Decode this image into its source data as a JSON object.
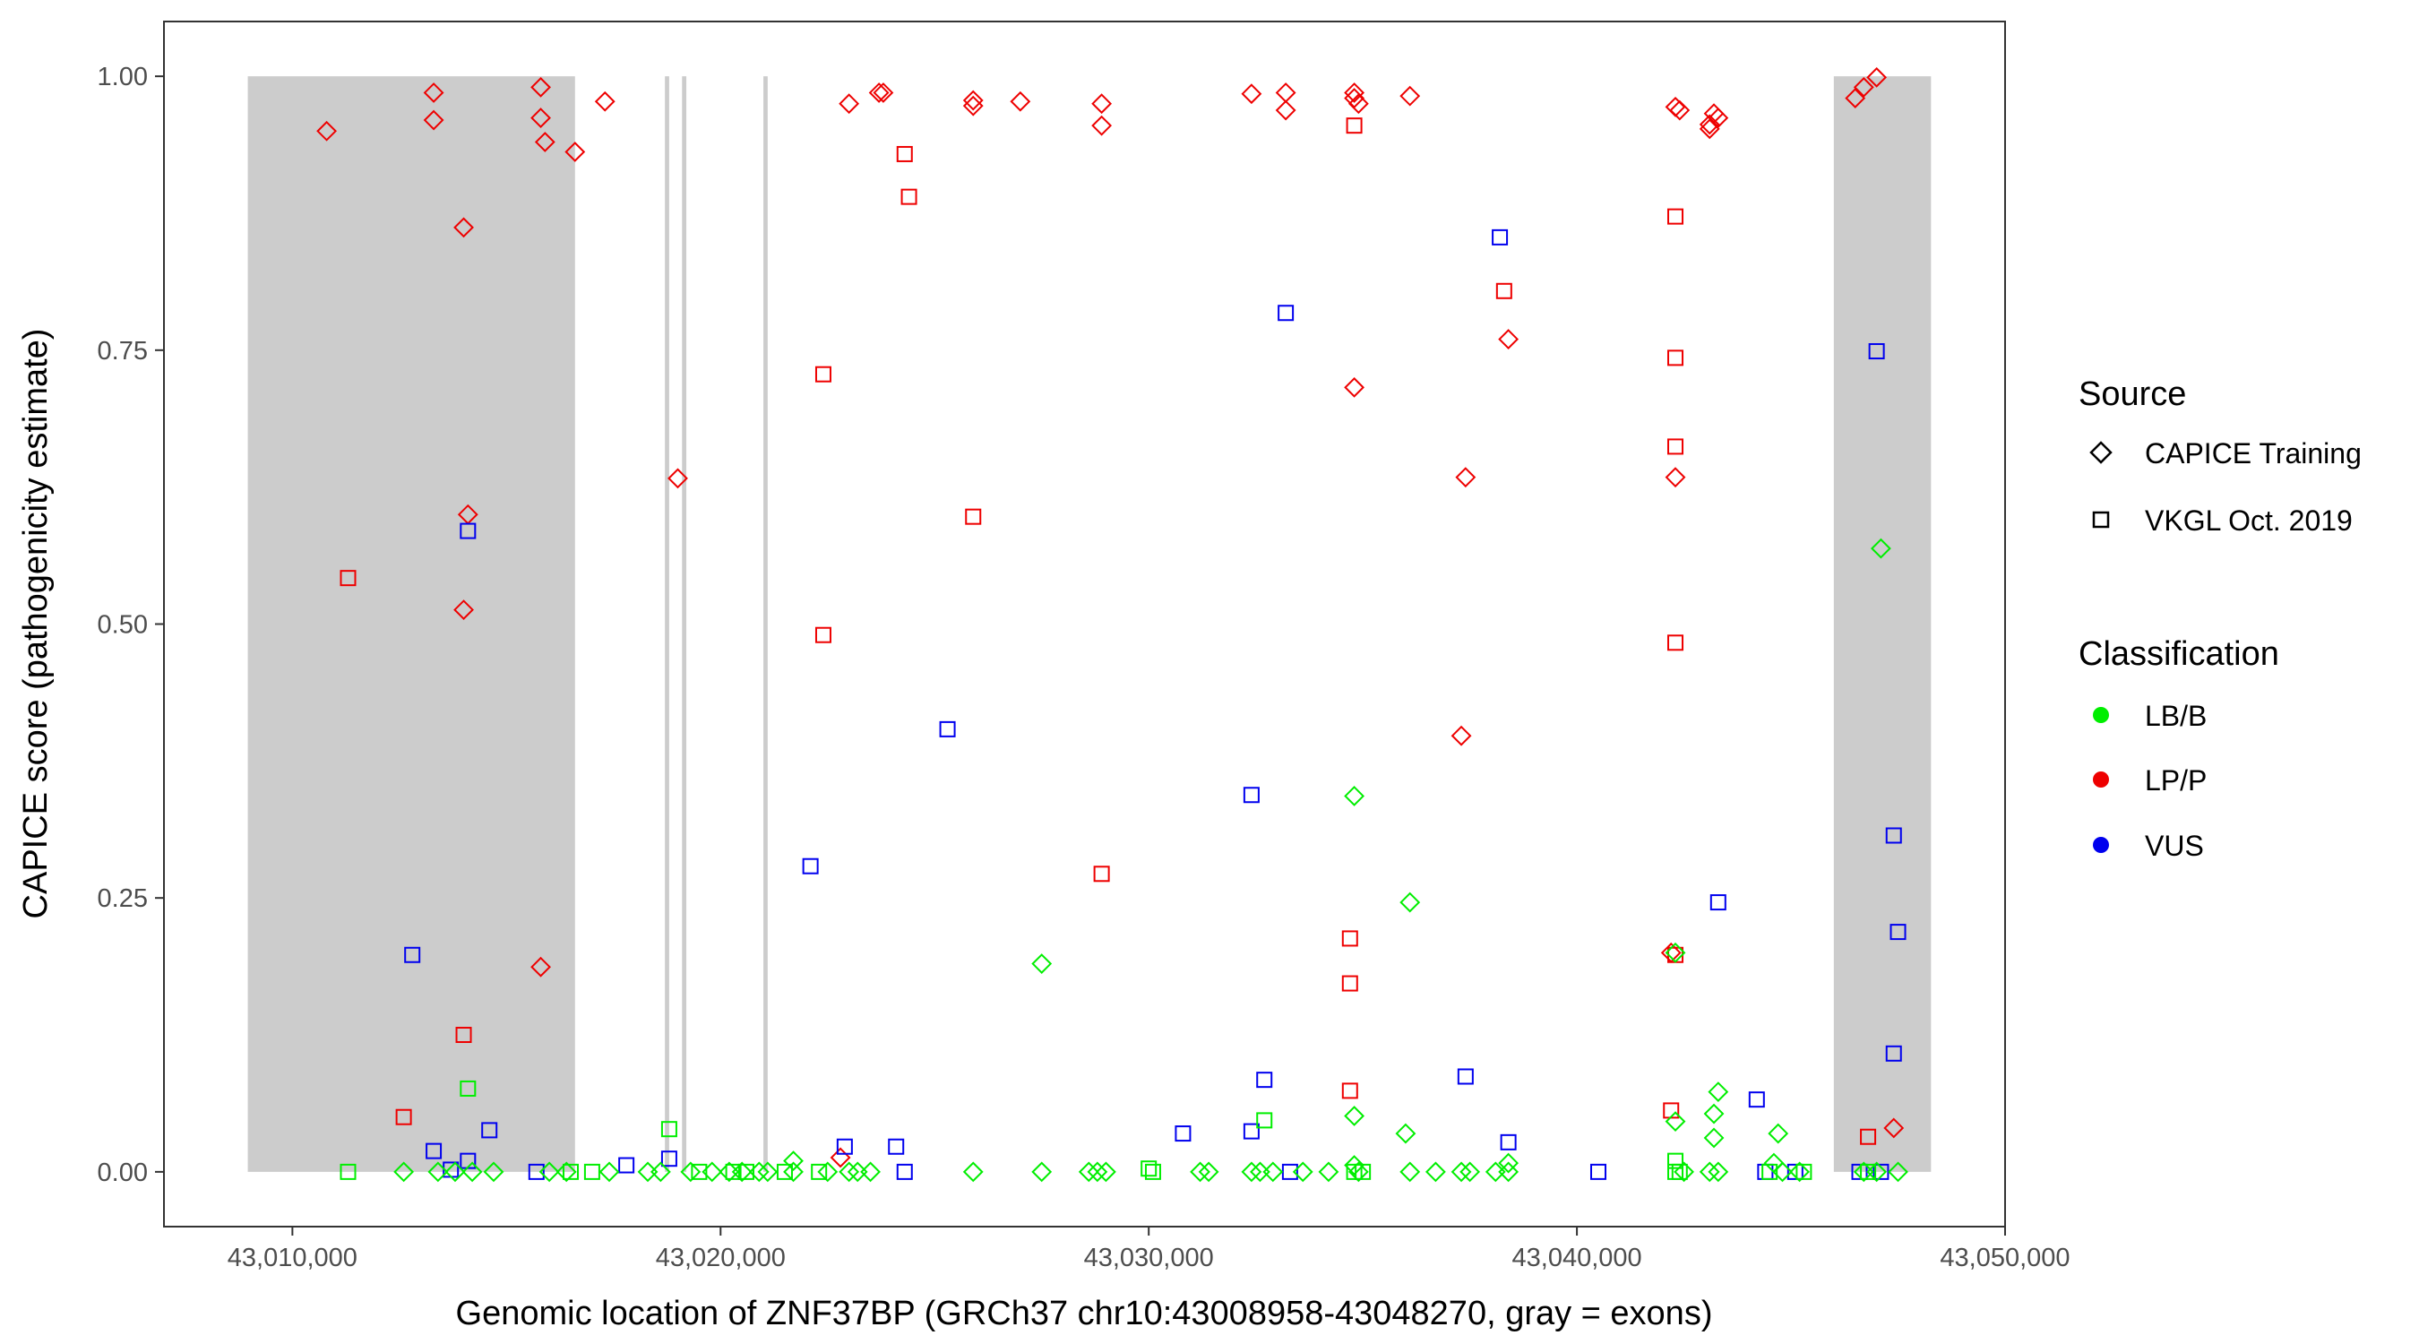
{
  "chart_data": {
    "type": "scatter",
    "xlabel": "Genomic location of ZNF37BP (GRCh37 chr10:43008958-43048270, gray = exons)",
    "ylabel": "CAPICE score (pathogenicity estimate)",
    "xlim": [
      43007000,
      43050000
    ],
    "ylim": [
      -0.05,
      1.05
    ],
    "x_ticks": [
      43010000,
      43020000,
      43030000,
      43040000,
      43050000
    ],
    "x_tick_labels": [
      "43,010,000",
      "43,020,000",
      "43,030,000",
      "43,040,000",
      "43,050,000"
    ],
    "y_ticks": [
      0,
      0.25,
      0.5,
      0.75,
      1.0
    ],
    "y_tick_labels": [
      "0.00",
      "0.25",
      "0.50",
      "0.75",
      "1.00"
    ],
    "grid": false,
    "exons": [
      {
        "start": 43008958,
        "end": 43016600
      },
      {
        "start": 43018700,
        "end": 43018800
      },
      {
        "start": 43019100,
        "end": 43019200
      },
      {
        "start": 43021000,
        "end": 43021100
      },
      {
        "start": 43046000,
        "end": 43048270
      }
    ],
    "exon_color": "#cccccc",
    "legend_placement": "right",
    "legends": {
      "source": {
        "title": "Source",
        "items": [
          {
            "label": "CAPICE Training",
            "shape": "diamond"
          },
          {
            "label": "VKGL Oct. 2019",
            "shape": "square"
          }
        ]
      },
      "classification": {
        "title": "Classification",
        "items": [
          {
            "label": "LB/B",
            "color": "#00ee00"
          },
          {
            "label": "LP/P",
            "color": "#ee0000"
          },
          {
            "label": "VUS",
            "color": "#0000ee"
          }
        ]
      }
    },
    "colors": {
      "LB/B": "#00ee00",
      "LP/P": "#ee0000",
      "VUS": "#0000ee"
    },
    "series": [
      {
        "source": "CAPICE Training",
        "class": "LP/P",
        "points": [
          [
            43010800,
            0.95
          ],
          [
            43013300,
            0.985
          ],
          [
            43013300,
            0.96
          ],
          [
            43014000,
            0.862
          ],
          [
            43014100,
            0.6
          ],
          [
            43014000,
            0.513
          ],
          [
            43015800,
            0.99
          ],
          [
            43015800,
            0.962
          ],
          [
            43015900,
            0.94
          ],
          [
            43015800,
            0.187
          ],
          [
            43016600,
            0.931
          ],
          [
            43017300,
            0.977
          ],
          [
            43019000,
            0.633
          ],
          [
            43023000,
            0.975
          ],
          [
            43023700,
            0.985
          ],
          [
            43023800,
            0.985
          ],
          [
            43025900,
            0.978
          ],
          [
            43025900,
            0.973
          ],
          [
            43027000,
            0.977
          ],
          [
            43028900,
            0.975
          ],
          [
            43028900,
            0.955
          ],
          [
            43032400,
            0.984
          ],
          [
            43033200,
            0.985
          ],
          [
            43033200,
            0.969
          ],
          [
            43034800,
            0.985
          ],
          [
            43034800,
            0.98
          ],
          [
            43034900,
            0.975
          ],
          [
            43034800,
            0.716
          ],
          [
            43036100,
            0.982
          ],
          [
            43037400,
            0.634
          ],
          [
            43037300,
            0.398
          ],
          [
            43038400,
            0.76
          ],
          [
            43042300,
            0.972
          ],
          [
            43042400,
            0.969
          ],
          [
            43042300,
            0.634
          ],
          [
            43043200,
            0.966
          ],
          [
            43043300,
            0.962
          ],
          [
            43043100,
            0.956
          ],
          [
            43043100,
            0.952
          ],
          [
            43046500,
            0.98
          ],
          [
            43046700,
            0.99
          ],
          [
            43047000,
            0.999
          ],
          [
            43047400,
            0.04
          ],
          [
            43022800,
            0.013
          ],
          [
            43042200,
            0.2
          ]
        ]
      },
      {
        "source": "VKGL Oct. 2019",
        "class": "LP/P",
        "points": [
          [
            43011300,
            0.542
          ],
          [
            43012600,
            0.05
          ],
          [
            43014000,
            0.125
          ],
          [
            43022400,
            0.728
          ],
          [
            43022400,
            0.49
          ],
          [
            43024300,
            0.929
          ],
          [
            43024400,
            0.89
          ],
          [
            43025900,
            0.598
          ],
          [
            43028900,
            0.272
          ],
          [
            43034800,
            0.955
          ],
          [
            43034700,
            0.213
          ],
          [
            43034700,
            0.172
          ],
          [
            43034700,
            0.074
          ],
          [
            43038300,
            0.804
          ],
          [
            43042300,
            0.872
          ],
          [
            43042300,
            0.743
          ],
          [
            43042300,
            0.662
          ],
          [
            43042300,
            0.483
          ],
          [
            43042300,
            0.198
          ],
          [
            43042200,
            0.056
          ],
          [
            43046800,
            0.032
          ]
        ]
      },
      {
        "source": "VKGL Oct. 2019",
        "class": "VUS",
        "points": [
          [
            43012800,
            0.198
          ],
          [
            43013300,
            0.019
          ],
          [
            43013700,
            0.002
          ],
          [
            43014100,
            0.585
          ],
          [
            43014100,
            0.01
          ],
          [
            43014600,
            0.038
          ],
          [
            43015700,
            0.0
          ],
          [
            43017800,
            0.006
          ],
          [
            43018800,
            0.012
          ],
          [
            43022100,
            0.279
          ],
          [
            43022900,
            0.023
          ],
          [
            43024100,
            0.023
          ],
          [
            43024300,
            0.0
          ],
          [
            43025300,
            0.404
          ],
          [
            43030800,
            0.035
          ],
          [
            43032400,
            0.344
          ],
          [
            43032400,
            0.037
          ],
          [
            43032700,
            0.084
          ],
          [
            43033200,
            0.784
          ],
          [
            43033300,
            0.0
          ],
          [
            43037400,
            0.087
          ],
          [
            43038200,
            0.853
          ],
          [
            43038400,
            0.027
          ],
          [
            43040500,
            0.0
          ],
          [
            43043300,
            0.246
          ],
          [
            43044200,
            0.066
          ],
          [
            43044400,
            0.0
          ],
          [
            43045100,
            0.0
          ],
          [
            43046600,
            0.0
          ],
          [
            43047000,
            0.749
          ],
          [
            43047400,
            0.307
          ],
          [
            43047500,
            0.219
          ],
          [
            43047400,
            0.108
          ],
          [
            43047100,
            0.0
          ]
        ]
      },
      {
        "source": "VKGL Oct. 2019",
        "class": "LB/B",
        "points": [
          [
            43011300,
            0.0
          ],
          [
            43014100,
            0.076
          ],
          [
            43018800,
            0.039
          ],
          [
            43016500,
            0.0
          ],
          [
            43017000,
            0.0
          ],
          [
            43019500,
            0.0
          ],
          [
            43020300,
            0.0
          ],
          [
            43020600,
            0.0
          ],
          [
            43021500,
            0.0
          ],
          [
            43022300,
            0.0
          ],
          [
            43030000,
            0.003
          ],
          [
            43030100,
            0.0
          ],
          [
            43032700,
            0.047
          ],
          [
            43034800,
            0.0
          ],
          [
            43035000,
            0.0
          ],
          [
            43042300,
            0.0
          ],
          [
            43042400,
            0.0
          ],
          [
            43042300,
            0.01
          ],
          [
            43044500,
            0.0
          ],
          [
            43045300,
            0.0
          ],
          [
            43046800,
            0.0
          ]
        ]
      },
      {
        "source": "CAPICE Training",
        "class": "LB/B",
        "points": [
          [
            43012600,
            0.0
          ],
          [
            43013400,
            0.0
          ],
          [
            43013800,
            0.0
          ],
          [
            43014200,
            0.0
          ],
          [
            43014700,
            0.0
          ],
          [
            43016000,
            0.0
          ],
          [
            43016400,
            0.0
          ],
          [
            43017400,
            0.0
          ],
          [
            43018300,
            0.0
          ],
          [
            43018600,
            0.0
          ],
          [
            43019300,
            0.0
          ],
          [
            43019800,
            0.0
          ],
          [
            43020200,
            0.0
          ],
          [
            43020500,
            0.0
          ],
          [
            43020900,
            0.0
          ],
          [
            43021100,
            0.0
          ],
          [
            43021700,
            0.0
          ],
          [
            43021700,
            0.01
          ],
          [
            43022500,
            0.0
          ],
          [
            43023000,
            0.0
          ],
          [
            43023200,
            0.0
          ],
          [
            43023500,
            0.0
          ],
          [
            43025900,
            0.0
          ],
          [
            43027500,
            0.19
          ],
          [
            43027500,
            0.0
          ],
          [
            43028600,
            0.0
          ],
          [
            43028800,
            0.0
          ],
          [
            43029000,
            0.0
          ],
          [
            43031200,
            0.0
          ],
          [
            43031400,
            0.0
          ],
          [
            43032400,
            0.0
          ],
          [
            43032600,
            0.0
          ],
          [
            43032900,
            0.0
          ],
          [
            43033600,
            0.0
          ],
          [
            43034200,
            0.0
          ],
          [
            43034800,
            0.343
          ],
          [
            43034800,
            0.051
          ],
          [
            43034800,
            0.006
          ],
          [
            43034900,
            0.0
          ],
          [
            43036100,
            0.246
          ],
          [
            43036000,
            0.035
          ],
          [
            43036100,
            0.0
          ],
          [
            43036700,
            0.0
          ],
          [
            43037300,
            0.0
          ],
          [
            43037500,
            0.0
          ],
          [
            43038100,
            0.0
          ],
          [
            43038400,
            0.008
          ],
          [
            43038400,
            0.0
          ],
          [
            43042300,
            0.2
          ],
          [
            43042300,
            0.046
          ],
          [
            43042500,
            0.0
          ],
          [
            43043100,
            0.0
          ],
          [
            43043300,
            0.073
          ],
          [
            43043200,
            0.053
          ],
          [
            43043200,
            0.031
          ],
          [
            43043300,
            0.0
          ],
          [
            43044700,
            0.035
          ],
          [
            43044600,
            0.008
          ],
          [
            43044800,
            0.0
          ],
          [
            43045200,
            0.0
          ],
          [
            43046700,
            0.0
          ],
          [
            43047100,
            0.569
          ],
          [
            43047000,
            0.0
          ],
          [
            43047500,
            0.0
          ]
        ]
      }
    ]
  }
}
